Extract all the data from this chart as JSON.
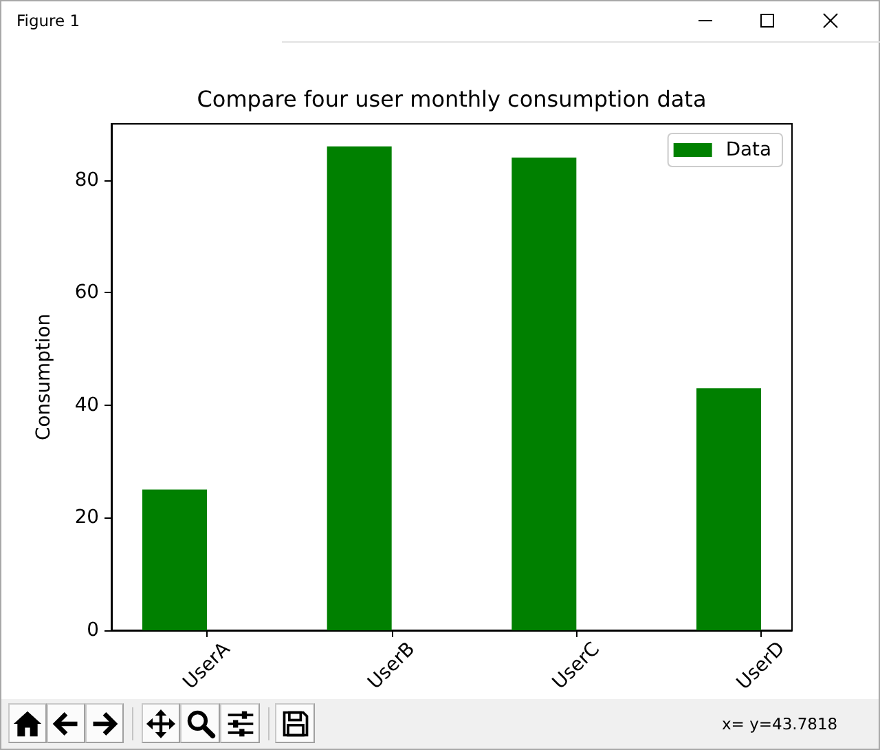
{
  "chart_data": {
    "type": "bar",
    "title": "Compare four user monthly consumption data",
    "ylabel": "Consumption",
    "categories": [
      "UserA",
      "UserB",
      "UserC",
      "UserD"
    ],
    "series": [
      {
        "name": "Data",
        "color": "#008000",
        "values": [
          25,
          86,
          84,
          43
        ]
      }
    ],
    "ylim": [
      0,
      90
    ],
    "yticks": [
      0,
      20,
      40,
      60,
      80
    ],
    "legend": "top right",
    "annotations": [
      "Figure 1",
      "x= y=43.7818"
    ]
  }
}
